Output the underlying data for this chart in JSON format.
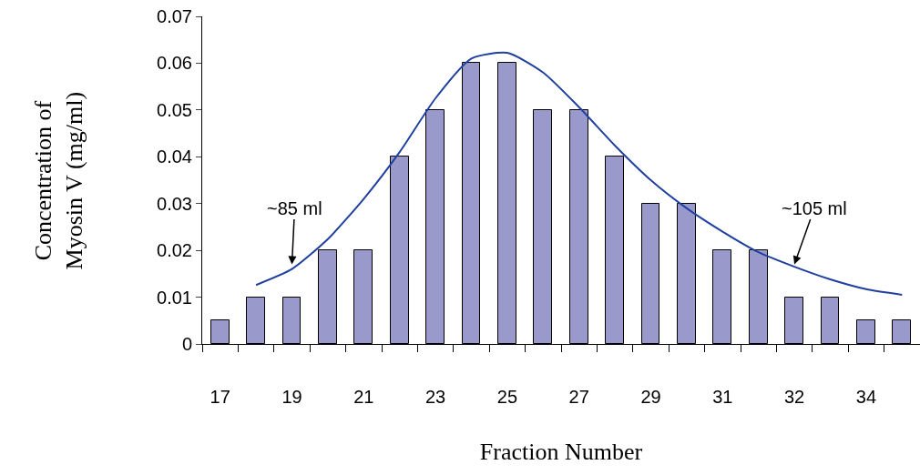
{
  "chart_data": {
    "type": "bar",
    "xlabel": "Fraction Number",
    "ylabel": "Concentration of\nMyosin V (mg/ml)",
    "categories": [
      "17",
      null,
      "19",
      null,
      "21",
      null,
      "23",
      null,
      "25",
      null,
      "27",
      null,
      "29",
      null,
      "31",
      null,
      "32",
      null,
      "34",
      null
    ],
    "series": [
      {
        "color": "#9999cc",
        "values": [
          0.005,
          0.01,
          0.01,
          0.02,
          0.02,
          0.04,
          0.05,
          0.06,
          0.06,
          0.05,
          0.05,
          0.04,
          0.03,
          0.03,
          0.02,
          0.02,
          0.01,
          0.01,
          0.005,
          0.005
        ]
      },
      {
        "type": "line",
        "color": "#2040a0",
        "values": [
          null,
          0.0126,
          0.016,
          0.0224,
          0.031,
          0.041,
          0.0525,
          0.061,
          0.0622,
          0.058,
          0.0506,
          0.0424,
          0.035,
          0.029,
          0.024,
          0.0196,
          0.0165,
          0.0138,
          0.0117,
          0.0105
        ]
      }
    ],
    "ylim": [
      0,
      0.07
    ],
    "yticks": [
      0,
      0.01,
      0.02,
      0.03,
      0.04,
      0.05,
      0.06,
      0.07
    ],
    "grid": false,
    "marker": "none",
    "line_style": "solid",
    "annotations": [
      {
        "text": "~85 ml",
        "x": "19",
        "y": 0.017
      },
      {
        "text": "~105 ml",
        "x": "32",
        "y": 0.017
      }
    ]
  }
}
